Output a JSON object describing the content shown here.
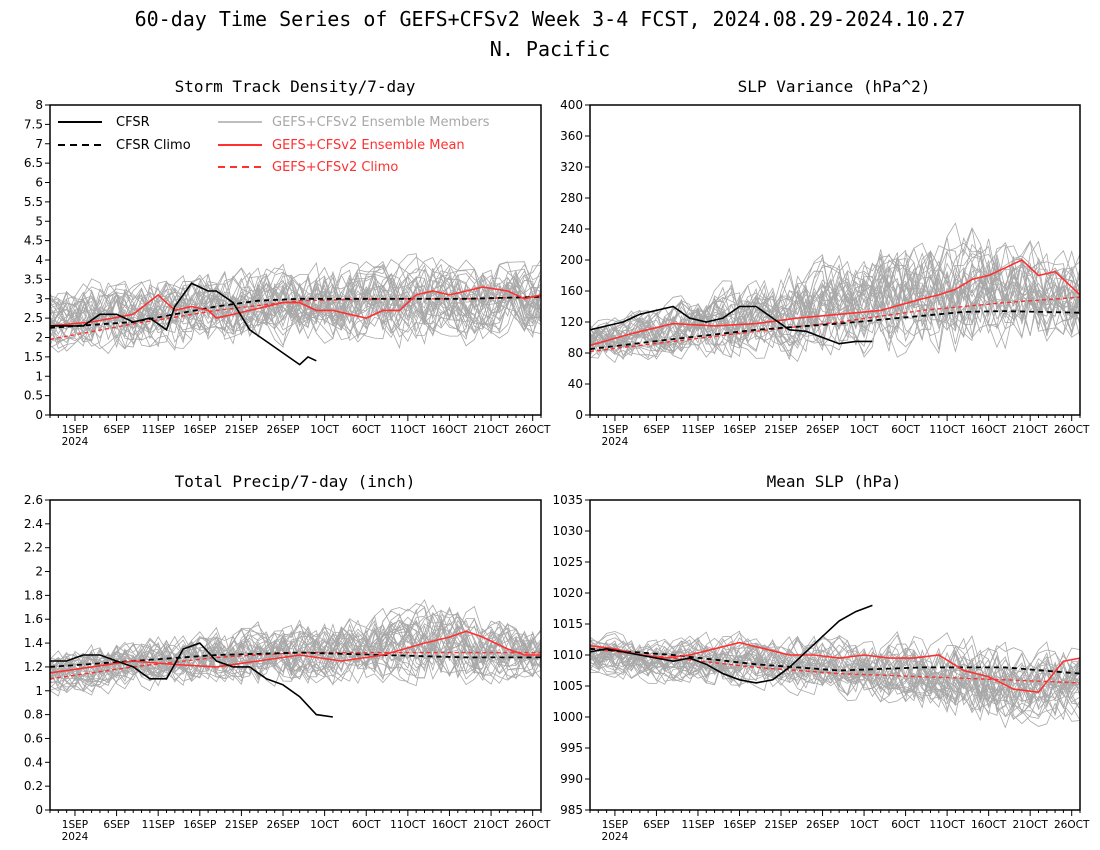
{
  "figure": {
    "title": "60-day Time Series of GEFS+CFSv2 Week 3-4 FCST, 2024.08.29-2024.10.27",
    "subtitle": "N. Pacific"
  },
  "legend": {
    "cfsr": "CFSR",
    "cfsr_climo": "CFSR Climo",
    "members": "GEFS+CFSv2 Ensemble Members",
    "ens_mean": "GEFS+CFSv2 Ensemble Mean",
    "climo": "GEFS+CFSv2 Climo"
  },
  "colors": {
    "cfsr": "#000000",
    "members": "#a8a8a8",
    "ens_mean": "#ff3030",
    "climo": "#ff3030"
  },
  "x_axis": {
    "days": 60,
    "start_date": "2024-08-29",
    "tick_days": [
      3,
      8,
      13,
      18,
      23,
      28,
      33,
      38,
      43,
      48,
      53,
      58
    ],
    "tick_labels": [
      "1SEP",
      "6SEP",
      "11SEP",
      "16SEP",
      "21SEP",
      "26SEP",
      "1OCT",
      "6OCT",
      "11OCT",
      "16OCT",
      "21OCT",
      "26OCT"
    ],
    "year_label": "2024"
  },
  "chart_data": [
    {
      "type": "line",
      "title": "Storm Track Density/7-day",
      "ylim": [
        0,
        8
      ],
      "yticks": [
        0,
        0.5,
        1,
        1.5,
        2,
        2.5,
        3,
        3.5,
        4,
        4.5,
        5,
        5.5,
        6,
        6.5,
        7,
        7.5,
        8
      ],
      "series": [
        {
          "name": "CFSR",
          "x": [
            0,
            2,
            4,
            6,
            8,
            10,
            12,
            14,
            15,
            17,
            19,
            20,
            22,
            24,
            26,
            28,
            30,
            31,
            32
          ],
          "y": [
            2.3,
            2.3,
            2.3,
            2.6,
            2.6,
            2.4,
            2.5,
            2.2,
            2.8,
            3.4,
            3.2,
            3.2,
            2.9,
            2.2,
            1.9,
            1.6,
            1.3,
            1.5,
            1.4
          ]
        },
        {
          "name": "CFSR Climo",
          "x": [
            0,
            10,
            20,
            25,
            30,
            40,
            50,
            59
          ],
          "y": [
            2.25,
            2.4,
            2.8,
            2.95,
            3.0,
            3.0,
            3.0,
            3.05
          ]
        },
        {
          "name": "GEFS+CFSv2 Ensemble Mean",
          "x": [
            0,
            5,
            10,
            13,
            15,
            17,
            19,
            20,
            22,
            24,
            26,
            28,
            30,
            32,
            34,
            36,
            38,
            40,
            42,
            44,
            46,
            48,
            50,
            52,
            55,
            57,
            59
          ],
          "y": [
            2.3,
            2.4,
            2.6,
            3.1,
            2.7,
            2.8,
            2.7,
            2.5,
            2.6,
            2.7,
            2.8,
            2.9,
            2.9,
            2.7,
            2.7,
            2.6,
            2.5,
            2.7,
            2.7,
            3.1,
            3.2,
            3.1,
            3.2,
            3.3,
            3.2,
            3.0,
            3.1
          ]
        },
        {
          "name": "GEFS+CFSv2 Climo",
          "x": [
            0,
            10,
            20,
            30,
            40,
            50,
            59
          ],
          "y": [
            1.95,
            2.35,
            2.7,
            2.95,
            3.0,
            3.0,
            3.05
          ]
        }
      ],
      "members": {
        "count": 35,
        "center": [
          2.4,
          2.6,
          2.7,
          2.8,
          2.85,
          2.9,
          2.9,
          2.95,
          3.0,
          3.0
        ],
        "spread": [
          1.0,
          1.1,
          1.1,
          1.2,
          1.2,
          1.2,
          1.25,
          1.3,
          1.3,
          1.25
        ]
      }
    },
    {
      "type": "line",
      "title": "SLP Variance (hPa^2)",
      "ylim": [
        0,
        400
      ],
      "yticks": [
        0,
        40,
        80,
        120,
        160,
        200,
        240,
        280,
        320,
        360,
        400
      ],
      "series": [
        {
          "name": "CFSR",
          "x": [
            0,
            2,
            4,
            6,
            8,
            10,
            12,
            14,
            16,
            18,
            20,
            22,
            24,
            26,
            28,
            30,
            32,
            34
          ],
          "y": [
            110,
            115,
            120,
            130,
            135,
            140,
            125,
            120,
            125,
            140,
            140,
            125,
            110,
            108,
            100,
            92,
            95,
            95
          ]
        },
        {
          "name": "CFSR Climo",
          "x": [
            0,
            10,
            20,
            30,
            40,
            45,
            50,
            59
          ],
          "y": [
            85,
            98,
            110,
            118,
            128,
            133,
            134,
            132
          ]
        },
        {
          "name": "GEFS+CFSv2 Ensemble Mean",
          "x": [
            0,
            5,
            10,
            15,
            20,
            25,
            30,
            35,
            40,
            42,
            44,
            46,
            48,
            50,
            52,
            54,
            56,
            58,
            59
          ],
          "y": [
            90,
            105,
            118,
            115,
            118,
            125,
            130,
            135,
            150,
            155,
            162,
            175,
            180,
            190,
            200,
            180,
            185,
            165,
            155
          ]
        },
        {
          "name": "GEFS+CFSv2 Climo",
          "x": [
            0,
            10,
            20,
            30,
            40,
            50,
            59
          ],
          "y": [
            82,
            95,
            108,
            120,
            135,
            145,
            152
          ]
        }
      ],
      "members": {
        "count": 35,
        "center": [
          95,
          105,
          115,
          125,
          135,
          145,
          155,
          160,
          160,
          150
        ],
        "spread": [
          30,
          40,
          50,
          60,
          70,
          80,
          90,
          90,
          80,
          70
        ]
      }
    },
    {
      "type": "line",
      "title": "Total Precip/7-day (inch)",
      "ylim": [
        0,
        2.6
      ],
      "yticks": [
        0,
        0.2,
        0.4,
        0.6,
        0.8,
        1,
        1.2,
        1.4,
        1.6,
        1.8,
        2,
        2.2,
        2.4,
        2.6
      ],
      "series": [
        {
          "name": "CFSR",
          "x": [
            0,
            2,
            4,
            6,
            8,
            10,
            12,
            14,
            16,
            18,
            20,
            22,
            24,
            26,
            28,
            30,
            32,
            34
          ],
          "y": [
            1.25,
            1.25,
            1.3,
            1.3,
            1.25,
            1.2,
            1.1,
            1.1,
            1.35,
            1.4,
            1.25,
            1.2,
            1.2,
            1.1,
            1.05,
            0.95,
            0.8,
            0.78
          ]
        },
        {
          "name": "CFSR Climo",
          "x": [
            0,
            10,
            20,
            30,
            40,
            50,
            59
          ],
          "y": [
            1.2,
            1.25,
            1.3,
            1.32,
            1.3,
            1.28,
            1.28
          ]
        },
        {
          "name": "GEFS+CFSv2 Ensemble Mean",
          "x": [
            0,
            5,
            10,
            15,
            20,
            25,
            30,
            35,
            40,
            45,
            48,
            50,
            52,
            55,
            57,
            59
          ],
          "y": [
            1.15,
            1.2,
            1.25,
            1.22,
            1.2,
            1.25,
            1.3,
            1.25,
            1.3,
            1.4,
            1.45,
            1.5,
            1.45,
            1.35,
            1.3,
            1.3
          ]
        },
        {
          "name": "GEFS+CFSv2 Climo",
          "x": [
            0,
            10,
            20,
            30,
            40,
            50,
            59
          ],
          "y": [
            1.1,
            1.2,
            1.28,
            1.32,
            1.32,
            1.32,
            1.32
          ]
        }
      ],
      "members": {
        "count": 35,
        "center": [
          1.15,
          1.2,
          1.25,
          1.28,
          1.3,
          1.32,
          1.35,
          1.4,
          1.35,
          1.3
        ],
        "spread": [
          0.22,
          0.25,
          0.25,
          0.28,
          0.3,
          0.32,
          0.35,
          0.4,
          0.35,
          0.3
        ]
      }
    },
    {
      "type": "line",
      "title": "Mean SLP (hPa)",
      "ylim": [
        985,
        1035
      ],
      "yticks": [
        985,
        990,
        995,
        1000,
        1005,
        1010,
        1015,
        1020,
        1025,
        1030,
        1035
      ],
      "series": [
        {
          "name": "CFSR",
          "x": [
            0,
            2,
            4,
            6,
            8,
            10,
            12,
            14,
            16,
            18,
            20,
            22,
            24,
            26,
            28,
            30,
            32,
            34
          ],
          "y": [
            1010.5,
            1011,
            1010.5,
            1010,
            1009.5,
            1009,
            1009.5,
            1008.5,
            1007,
            1006,
            1005.5,
            1006,
            1008,
            1010.5,
            1013,
            1015.5,
            1017,
            1018
          ]
        },
        {
          "name": "CFSR Climo",
          "x": [
            0,
            10,
            20,
            30,
            40,
            50,
            59
          ],
          "y": [
            1011,
            1010,
            1008.5,
            1007.5,
            1008,
            1008,
            1007
          ]
        },
        {
          "name": "GEFS+CFSv2 Ensemble Mean",
          "x": [
            0,
            3,
            6,
            9,
            12,
            15,
            18,
            21,
            24,
            27,
            30,
            33,
            36,
            39,
            42,
            45,
            48,
            51,
            54,
            57,
            59
          ],
          "y": [
            1011.5,
            1011,
            1010,
            1009.5,
            1010,
            1011,
            1012,
            1011,
            1010,
            1010,
            1009.5,
            1010,
            1009.5,
            1009.5,
            1010,
            1007.5,
            1006.5,
            1004.5,
            1004,
            1009,
            1009.5
          ]
        },
        {
          "name": "GEFS+CFSv2 Climo",
          "x": [
            0,
            10,
            20,
            30,
            40,
            50,
            59
          ],
          "y": [
            1011,
            1009.5,
            1008,
            1007,
            1006.5,
            1006,
            1005.5
          ]
        }
      ],
      "members": {
        "count": 35,
        "center": [
          1010,
          1009.5,
          1009,
          1009,
          1008.5,
          1008,
          1007,
          1006,
          1005,
          1005.5
        ],
        "spread": [
          4,
          4.5,
          5,
          5,
          5.5,
          6,
          7,
          8,
          8,
          7
        ]
      }
    }
  ]
}
